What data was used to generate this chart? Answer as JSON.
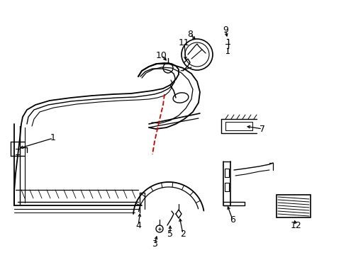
{
  "background_color": "#ffffff",
  "line_color": "#000000",
  "red_line_color": "#cc0000",
  "figsize": [
    4.89,
    3.6
  ],
  "dpi": 100
}
